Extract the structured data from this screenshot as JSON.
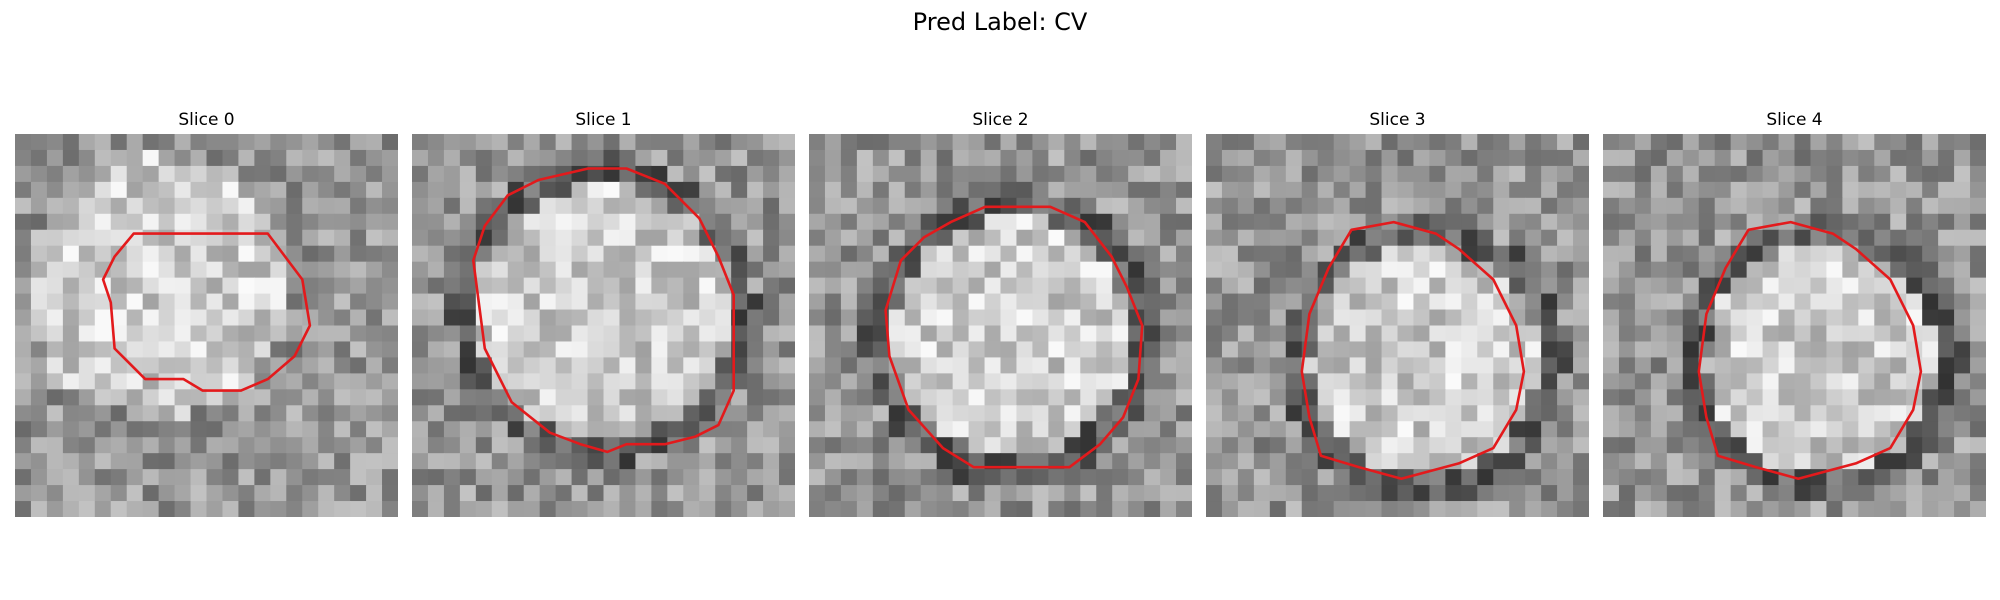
{
  "figure": {
    "title": "Pred Label: CV"
  },
  "contour_color": "#e31a1c",
  "slices": [
    {
      "label": "Slice 0"
    },
    {
      "label": "Slice 1"
    },
    {
      "label": "Slice 2"
    },
    {
      "label": "Slice 3"
    },
    {
      "label": "Slice 4"
    }
  ]
}
